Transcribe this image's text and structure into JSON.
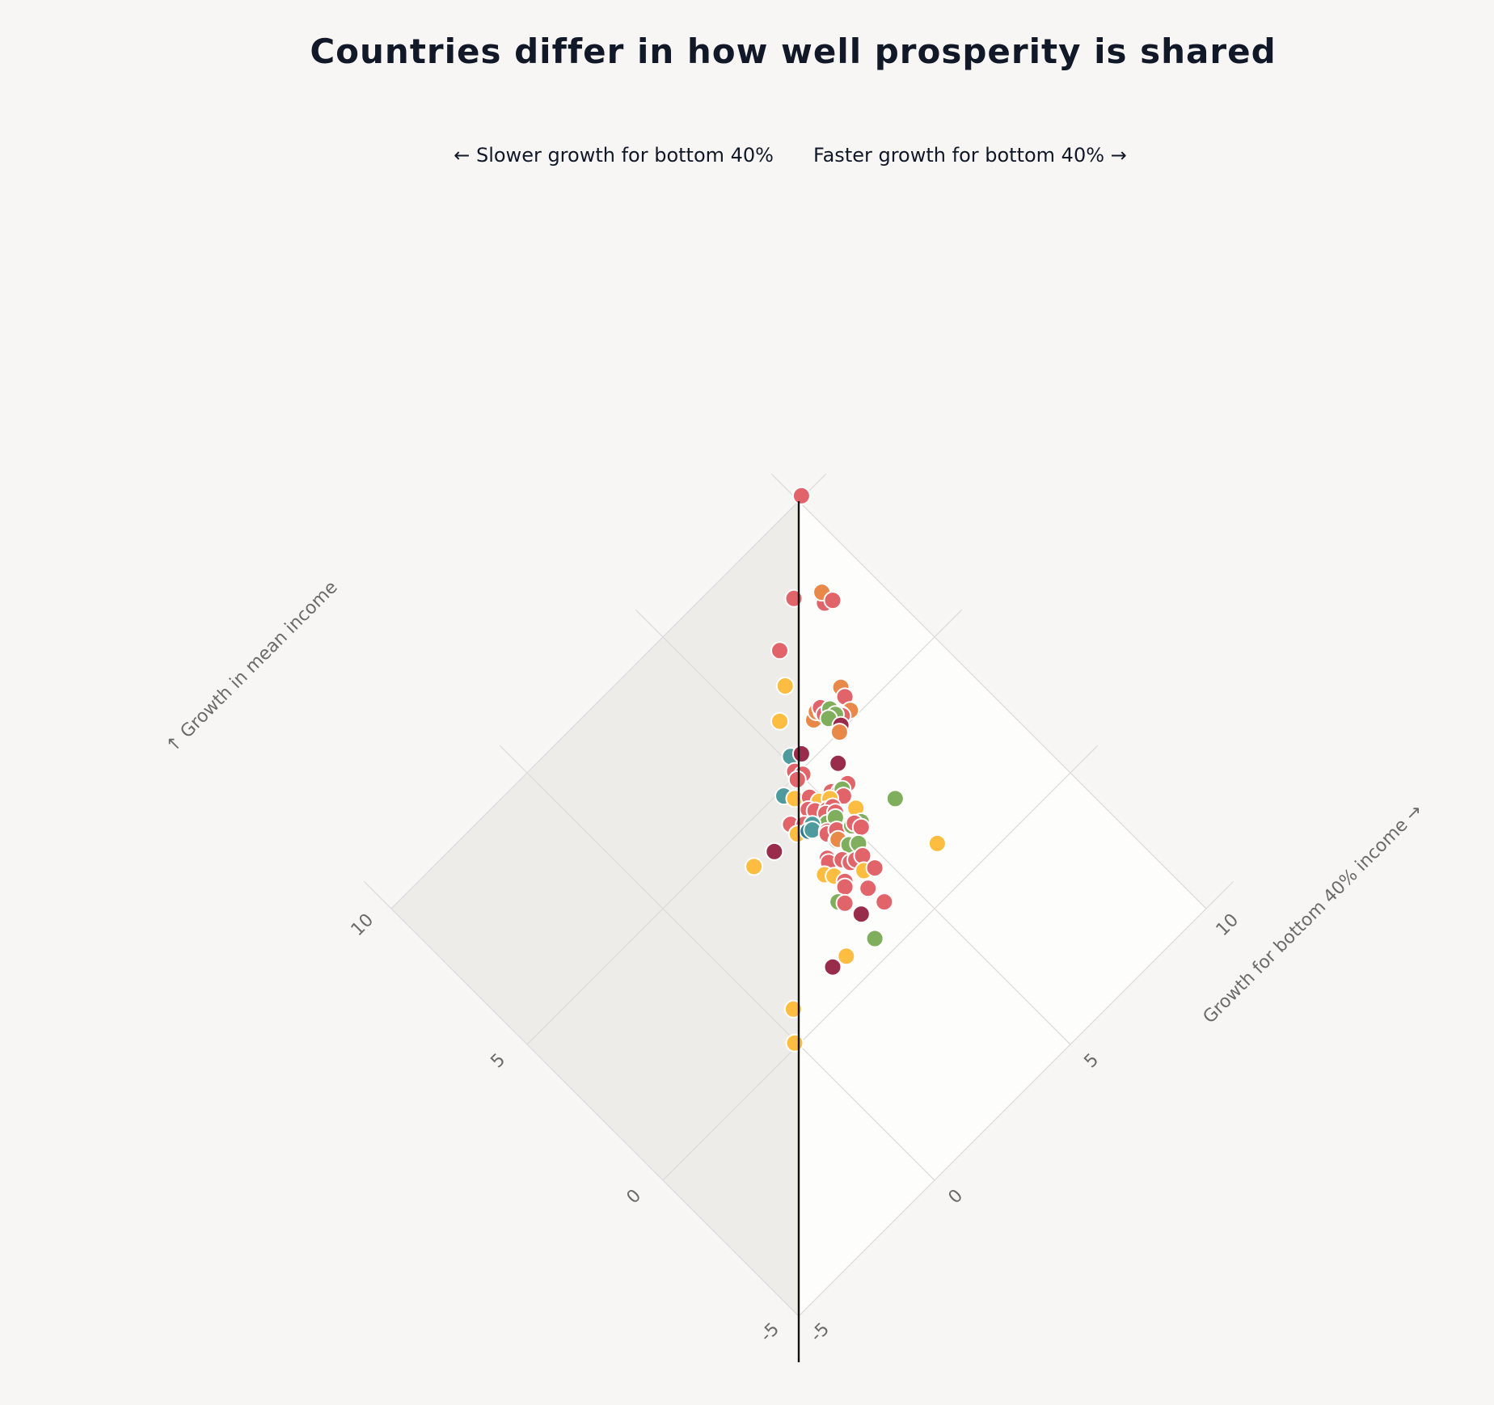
{
  "chart_data": {
    "type": "scatter",
    "title": "Countries differ in how well prosperity is shared",
    "left_direction_label": "← Slower growth for bottom 40%",
    "right_direction_label": "Faster growth for bottom 40% →",
    "xlabel": "Growth for bottom 40% income →",
    "ylabel": "↑ Growth in mean income",
    "xlim": [
      -5,
      10
    ],
    "ylim": [
      -5,
      10
    ],
    "ticks": [
      -5,
      0,
      5,
      10
    ],
    "tick_labels": [
      "-5",
      "0",
      "5",
      "10"
    ],
    "colors": {
      "red": "#e0646a",
      "orange": "#e8894a",
      "yellow": "#fcbd41",
      "green": "#7fae5c",
      "teal": "#4e9a9c",
      "darkteal": "#2d7a8a",
      "maroon": "#992c4b",
      "shade_left": "#eeece9",
      "shade_right": "#fdfdfc",
      "grid": "#dddbd7",
      "equality_line": "#111111"
    },
    "points": [
      {
        "x": 10.15,
        "y": 10.05,
        "c": "red"
      },
      {
        "x": 8.12,
        "y": 8.3,
        "c": "red"
      },
      {
        "x": 8.6,
        "y": 7.65,
        "c": "red"
      },
      {
        "x": 8.75,
        "y": 7.9,
        "c": "orange"
      },
      {
        "x": 8.8,
        "y": 7.55,
        "c": "red"
      },
      {
        "x": 6.9,
        "y": 7.6,
        "c": "red"
      },
      {
        "x": 6.35,
        "y": 6.85,
        "c": "yellow"
      },
      {
        "x": 5.6,
        "y": 6.3,
        "c": "yellow"
      },
      {
        "x": 7.35,
        "y": 5.8,
        "c": "orange"
      },
      {
        "x": 7.25,
        "y": 5.55,
        "c": "red"
      },
      {
        "x": 7.1,
        "y": 5.2,
        "c": "orange"
      },
      {
        "x": 6.25,
        "y": 5.7,
        "c": "orange"
      },
      {
        "x": 6.45,
        "y": 5.8,
        "c": "orange"
      },
      {
        "x": 6.55,
        "y": 5.7,
        "c": "red"
      },
      {
        "x": 6.85,
        "y": 5.3,
        "c": "red"
      },
      {
        "x": 6.85,
        "y": 5.25,
        "c": "red"
      },
      {
        "x": 6.6,
        "y": 5.8,
        "c": "red"
      },
      {
        "x": 6.55,
        "y": 5.6,
        "c": "red"
      },
      {
        "x": 6.75,
        "y": 5.6,
        "c": "green"
      },
      {
        "x": 6.75,
        "y": 5.4,
        "c": "green"
      },
      {
        "x": 6.55,
        "y": 5.45,
        "c": "green"
      },
      {
        "x": 6.65,
        "y": 5.1,
        "c": "maroon"
      },
      {
        "x": 6.5,
        "y": 5.0,
        "c": "orange"
      },
      {
        "x": 5.15,
        "y": 5.45,
        "c": "teal"
      },
      {
        "x": 5.4,
        "y": 5.3,
        "c": "maroon"
      },
      {
        "x": 5.9,
        "y": 4.45,
        "c": "maroon"
      },
      {
        "x": 4.95,
        "y": 5.1,
        "c": "red"
      },
      {
        "x": 5.05,
        "y": 4.9,
        "c": "red"
      },
      {
        "x": 4.85,
        "y": 4.9,
        "c": "red"
      },
      {
        "x": 4.3,
        "y": 4.85,
        "c": "teal"
      },
      {
        "x": 5.25,
        "y": 4.05,
        "c": "red"
      },
      {
        "x": 5.7,
        "y": 3.9,
        "c": "red"
      },
      {
        "x": 5.4,
        "y": 3.9,
        "c": "red"
      },
      {
        "x": 4.45,
        "y": 4.6,
        "c": "yellow"
      },
      {
        "x": 4.75,
        "y": 4.35,
        "c": "red"
      },
      {
        "x": 5.5,
        "y": 3.9,
        "c": "green"
      },
      {
        "x": 5.4,
        "y": 3.75,
        "c": "red"
      },
      {
        "x": 4.85,
        "y": 4.1,
        "c": "yellow"
      },
      {
        "x": 5.1,
        "y": 3.95,
        "c": "yellow"
      },
      {
        "x": 4.5,
        "y": 4.15,
        "c": "red"
      },
      {
        "x": 4.6,
        "y": 4.0,
        "c": "red"
      },
      {
        "x": 4.85,
        "y": 3.8,
        "c": "red"
      },
      {
        "x": 5.0,
        "y": 3.75,
        "c": "red"
      },
      {
        "x": 4.75,
        "y": 3.75,
        "c": "red"
      },
      {
        "x": 3.9,
        "y": 4.2,
        "c": "red"
      },
      {
        "x": 4.2,
        "y": 3.9,
        "c": "red"
      },
      {
        "x": 4.95,
        "y": 3.6,
        "c": "red"
      },
      {
        "x": 4.15,
        "y": 3.95,
        "c": "red"
      },
      {
        "x": 3.85,
        "y": 3.9,
        "c": "yellow"
      },
      {
        "x": 4.6,
        "y": 3.55,
        "c": "green"
      },
      {
        "x": 4.85,
        "y": 3.5,
        "c": "green"
      },
      {
        "x": 4.3,
        "y": 3.8,
        "c": "teal"
      },
      {
        "x": 4.1,
        "y": 3.75,
        "c": "darkteal"
      },
      {
        "x": 4.2,
        "y": 3.7,
        "c": "teal"
      },
      {
        "x": 5.4,
        "y": 3.3,
        "c": "yellow"
      },
      {
        "x": 4.45,
        "y": 3.4,
        "c": "red"
      },
      {
        "x": 4.4,
        "y": 3.35,
        "c": "red"
      },
      {
        "x": 4.65,
        "y": 3.25,
        "c": "red"
      },
      {
        "x": 5.0,
        "y": 3.05,
        "c": "green"
      },
      {
        "x": 5.25,
        "y": 2.95,
        "c": "green"
      },
      {
        "x": 5.1,
        "y": 3.05,
        "c": "red"
      },
      {
        "x": 5.15,
        "y": 2.85,
        "c": "red"
      },
      {
        "x": 4.45,
        "y": 3.05,
        "c": "green"
      },
      {
        "x": 4.5,
        "y": 3.05,
        "c": "orange"
      },
      {
        "x": 3.1,
        "y": 4.0,
        "c": "maroon"
      },
      {
        "x": 2.45,
        "y": 4.1,
        "c": "yellow"
      },
      {
        "x": 4.6,
        "y": 2.75,
        "c": "green"
      },
      {
        "x": 3.95,
        "y": 2.9,
        "c": "red"
      },
      {
        "x": 3.9,
        "y": 2.8,
        "c": "red"
      },
      {
        "x": 4.2,
        "y": 2.6,
        "c": "red"
      },
      {
        "x": 4.8,
        "y": 2.6,
        "c": "green"
      },
      {
        "x": 3.6,
        "y": 2.65,
        "c": "yellow"
      },
      {
        "x": 4.3,
        "y": 2.4,
        "c": "red"
      },
      {
        "x": 4.45,
        "y": 2.35,
        "c": "red"
      },
      {
        "x": 4.65,
        "y": 2.3,
        "c": "red"
      },
      {
        "x": 3.75,
        "y": 2.45,
        "c": "yellow"
      },
      {
        "x": 4.4,
        "y": 2.0,
        "c": "yellow"
      },
      {
        "x": 3.85,
        "y": 2.15,
        "c": "red"
      },
      {
        "x": 3.75,
        "y": 2.05,
        "c": "red"
      },
      {
        "x": 4.15,
        "y": 1.6,
        "c": "red"
      },
      {
        "x": 4.65,
        "y": 1.85,
        "c": "red"
      },
      {
        "x": 3.35,
        "y": 1.9,
        "c": "green"
      },
      {
        "x": 3.45,
        "y": 1.75,
        "c": "red"
      },
      {
        "x": 6.3,
        "y": 2.75,
        "c": "green"
      },
      {
        "x": 3.55,
        "y": 1.25,
        "c": "maroon"
      },
      {
        "x": 4.2,
        "y": 1.05,
        "c": "red"
      },
      {
        "x": 6.25,
        "y": 1.15,
        "c": "yellow"
      },
      {
        "x": 3.35,
        "y": 0.55,
        "c": "green"
      },
      {
        "x": 2.5,
        "y": 0.75,
        "c": "yellow"
      },
      {
        "x": 2.05,
        "y": 0.8,
        "c": "maroon"
      },
      {
        "x": -0.05,
        "y": 0.1,
        "c": "yellow"
      },
      {
        "x": 0.55,
        "y": 0.75,
        "c": "yellow"
      }
    ]
  }
}
